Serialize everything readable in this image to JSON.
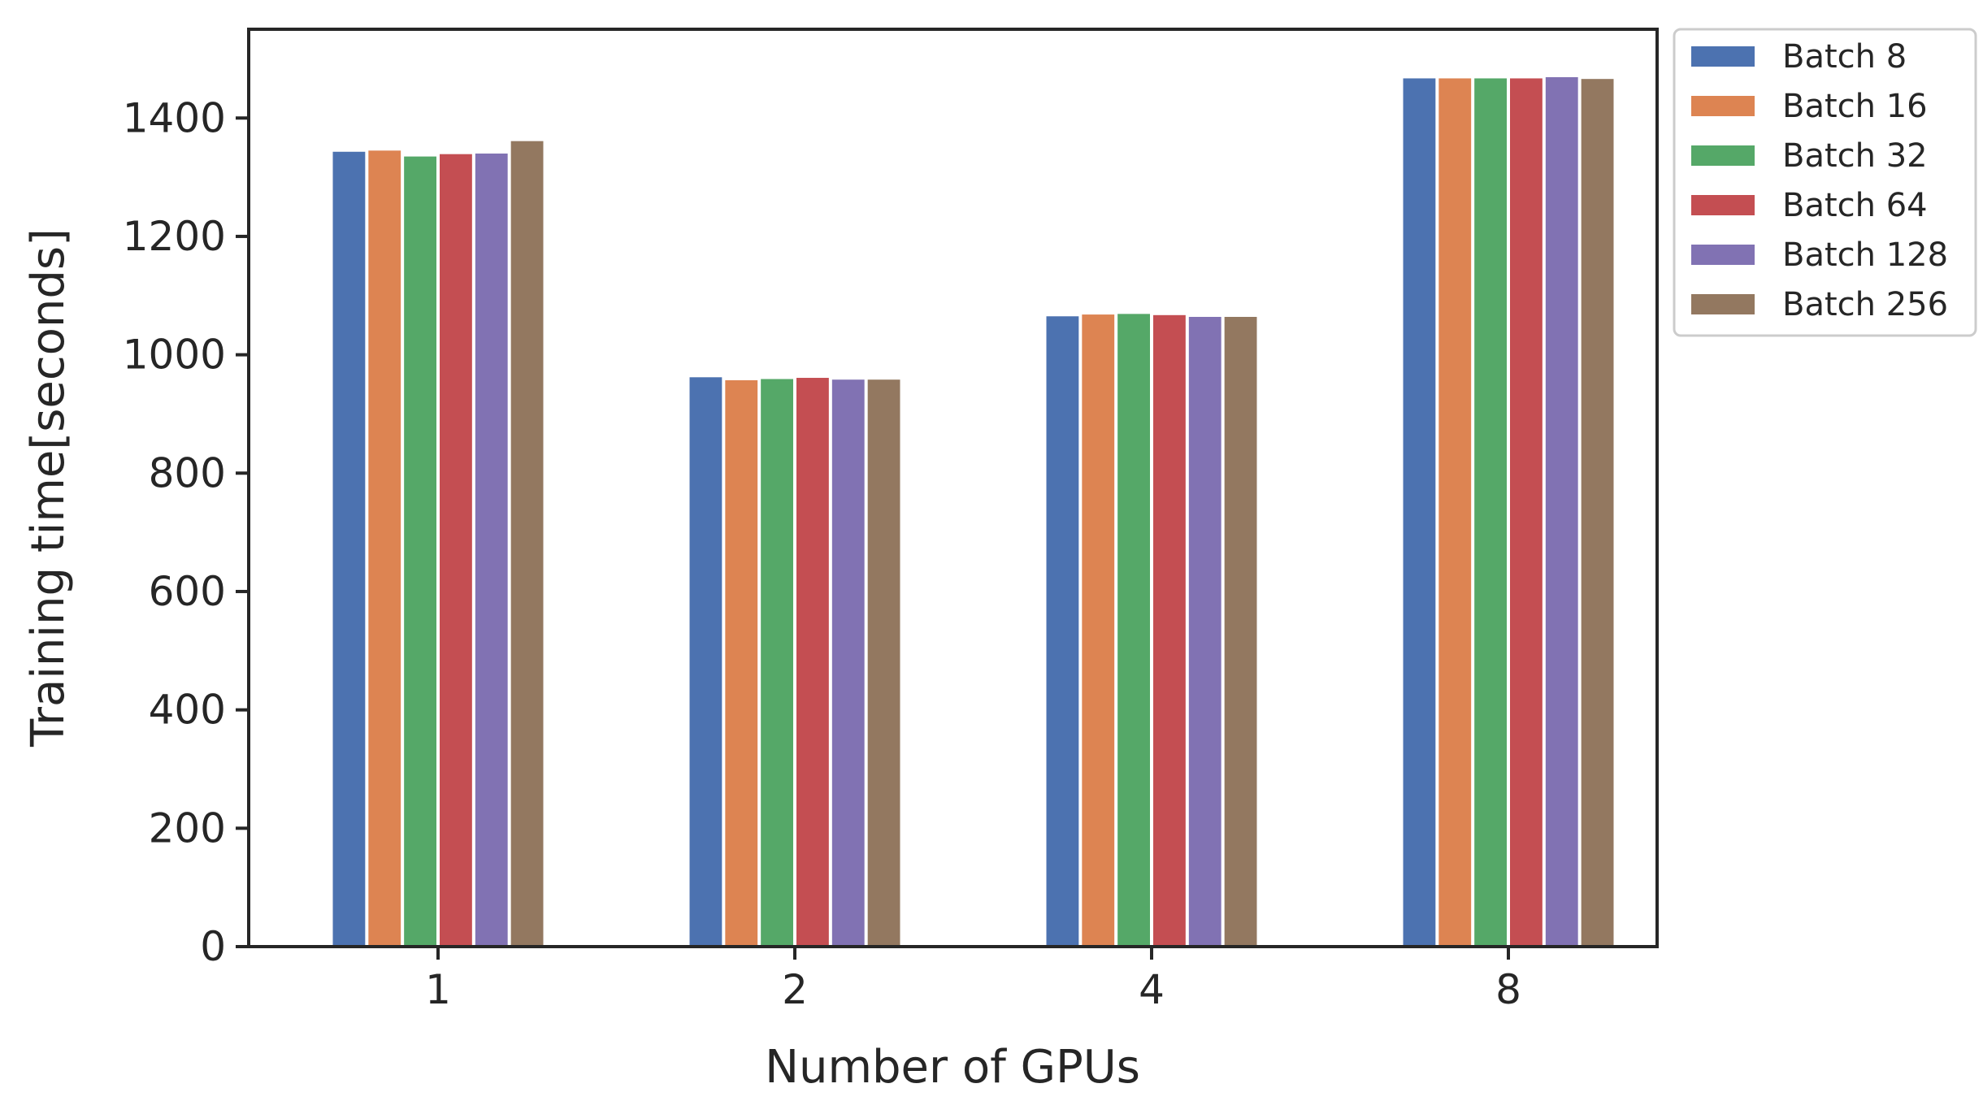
{
  "chart_data": {
    "type": "bar",
    "title": "",
    "xlabel": "Number of GPUs",
    "ylabel": "Training time[seconds]",
    "categories": [
      "1",
      "2",
      "4",
      "8"
    ],
    "ylim": [
      0,
      1550
    ],
    "yticks": [
      0,
      200,
      400,
      600,
      800,
      1000,
      1200,
      1400
    ],
    "grid": false,
    "legend_position": "outside-top-right",
    "series": [
      {
        "name": "Batch 8",
        "color": "#4c72b0",
        "values": [
          1343,
          962,
          1065,
          1467
        ]
      },
      {
        "name": "Batch 16",
        "color": "#dd8452",
        "values": [
          1345,
          957,
          1068,
          1467
        ]
      },
      {
        "name": "Batch 32",
        "color": "#55a868",
        "values": [
          1335,
          959,
          1069,
          1467
        ]
      },
      {
        "name": "Batch 64",
        "color": "#c44e52",
        "values": [
          1339,
          961,
          1067,
          1467
        ]
      },
      {
        "name": "Batch 128",
        "color": "#8172b3",
        "values": [
          1340,
          958,
          1064,
          1469
        ]
      },
      {
        "name": "Batch 256",
        "color": "#937860",
        "values": [
          1361,
          958,
          1064,
          1466
        ]
      }
    ]
  }
}
